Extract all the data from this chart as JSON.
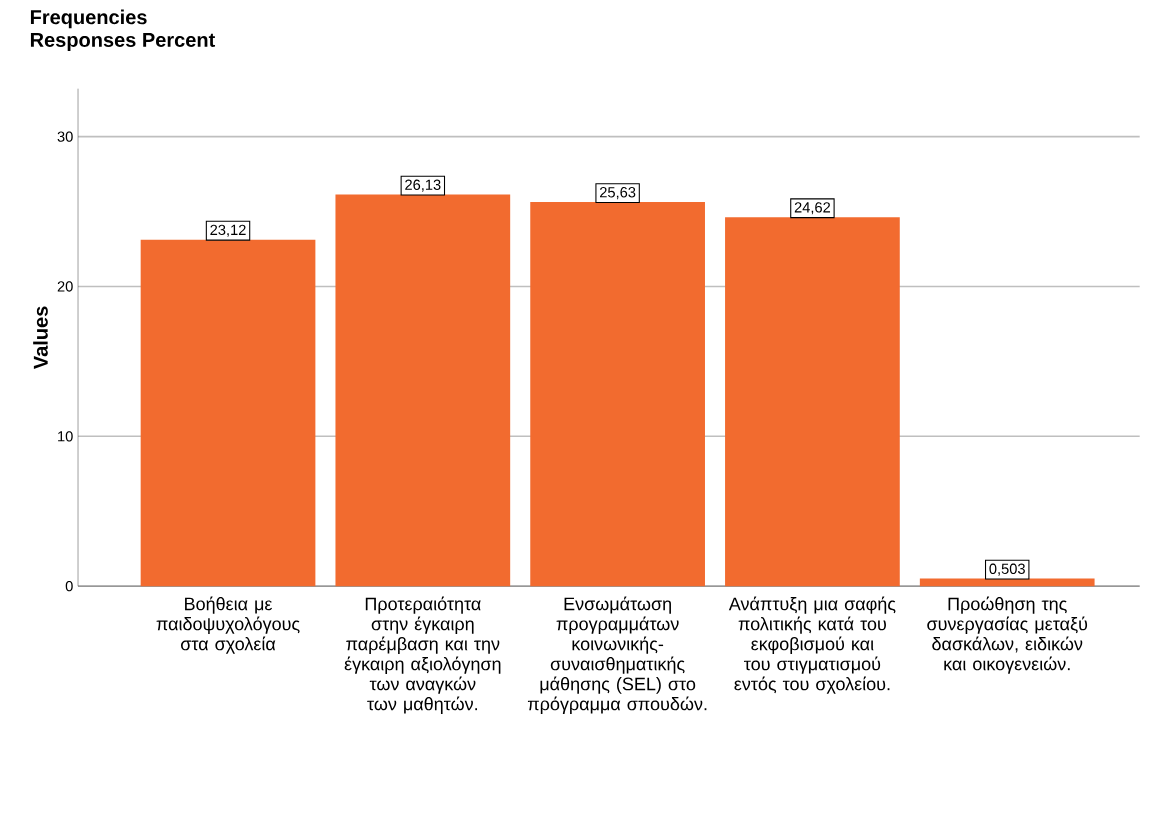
{
  "chart_data": {
    "type": "bar",
    "title": "Frequencies",
    "subtitle": "Responses Percent",
    "ylabel": "Values",
    "categories": [
      "Βοήθεια με παιδοψυχολόγους στα σχολεία",
      "Προτεραιότητα στην έγκαιρη παρέμβαση και την έγκαιρη αξιολόγηση των αναγκών των μαθητών.",
      "Ενσωμάτωση προγραμμάτων κοινωνικής-συναισθηματικής μάθησης (SEL) στο πρόγραμμα σπουδών.",
      "Ανάπτυξη μια σαφής πολιτικής κατά του εκφοβισμού και του στιγματισμού εντός του σχολείου.",
      "Προώθηση της συνεργασίας μεταξύ δασκάλων, ειδικών και οικογενειών."
    ],
    "values": [
      23.12,
      26.13,
      25.63,
      24.62,
      0.503
    ],
    "value_labels": [
      "23,12",
      "26,13",
      "25,63",
      "24,62",
      "0,503"
    ],
    "color": "#f26b2f",
    "ylim": [
      0,
      33.2
    ],
    "yticks": [
      0,
      10,
      20,
      30
    ],
    "grid": "y"
  }
}
